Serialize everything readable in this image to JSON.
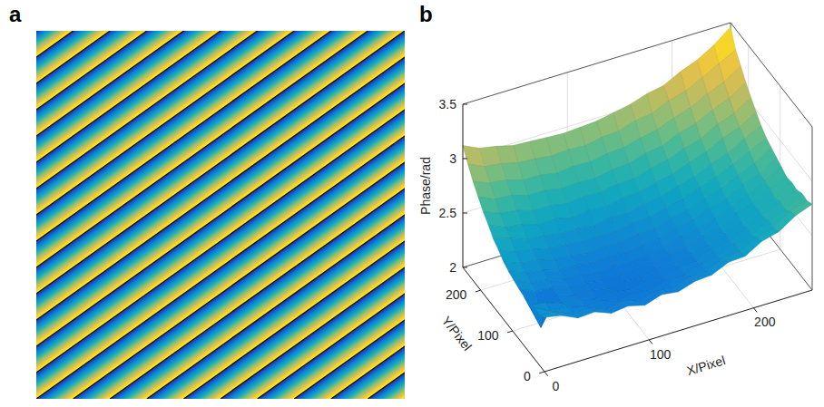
{
  "chart_data": [
    {
      "type": "wrapped_phase",
      "panel": "a",
      "color": "parula",
      "tick_labels": false,
      "xlim": [
        0,
        256
      ],
      "ylim": [
        0,
        256
      ],
      "zlim": [
        -3.14,
        3.14
      ],
      "wrap_lines": {
        "x_top": [
          0,
          25.6,
          51.2,
          76.8,
          102.4,
          128,
          153.6,
          179.2,
          204.8,
          230.4,
          256,
          281.6,
          307.2,
          332.8,
          358.4,
          384,
          409.6,
          435.2,
          460.8,
          486.4,
          512,
          537.6,
          563.2,
          588.8,
          614.4
        ],
        "x_bottom": [
          -358.4,
          -332.8,
          -307.2,
          -281.6,
          -256,
          -230.4,
          -204.8,
          -179.2,
          -153.6,
          -128,
          -102.4,
          -76.8,
          -51.2,
          -25.6,
          0,
          25.6,
          51.2,
          76.8,
          102.4,
          128,
          153.6,
          179.2,
          204.8,
          230.4,
          256
        ]
      }
    },
    {
      "type": "surface",
      "panel": "b",
      "color": "parula",
      "grid": true,
      "xlabel": "X/Pixel",
      "ylabel": "Y/Pixel",
      "zlabel": "Phase/rad",
      "xlim": [
        0,
        256
      ],
      "ylim": [
        0,
        256
      ],
      "zlim": [
        2,
        3.5
      ],
      "xticks": [
        0,
        100,
        200
      ],
      "yticks": [
        0,
        100,
        200
      ],
      "zticks": [
        2,
        2.5,
        3,
        3.5
      ],
      "x": [
        0,
        16,
        32,
        48,
        64,
        80,
        96,
        112,
        128,
        144,
        160,
        176,
        192,
        208,
        224,
        240,
        256
      ],
      "y": [
        0,
        16,
        32,
        48,
        64,
        80,
        96,
        112,
        128,
        144,
        160,
        176,
        192,
        208,
        224,
        240,
        256
      ],
      "z": [
        [
          2.5,
          2.47,
          2.4,
          2.41,
          2.35,
          2.37,
          2.33,
          2.38,
          2.36,
          2.41,
          2.42,
          2.49,
          2.5,
          2.59,
          2.63,
          2.73,
          2.79
        ],
        [
          2.46,
          2.44,
          2.37,
          2.38,
          2.32,
          2.35,
          2.31,
          2.35,
          2.33,
          2.39,
          2.39,
          2.46,
          2.48,
          2.56,
          2.6,
          2.71,
          2.76
        ],
        [
          2.47,
          2.39,
          2.38,
          2.33,
          2.34,
          2.3,
          2.32,
          2.3,
          2.34,
          2.34,
          2.4,
          2.41,
          2.49,
          2.52,
          2.61,
          2.66,
          2.77
        ],
        [
          2.43,
          2.41,
          2.35,
          2.35,
          2.3,
          2.31,
          2.29,
          2.32,
          2.31,
          2.35,
          2.36,
          2.43,
          2.45,
          2.53,
          2.58,
          2.68,
          2.74
        ],
        [
          2.45,
          2.12,
          2.37,
          2.32,
          2.32,
          2.29,
          2.31,
          2.29,
          2.33,
          2.33,
          2.38,
          2.4,
          2.47,
          2.51,
          2.59,
          2.65,
          2.75
        ],
        [
          2.46,
          2.39,
          2.38,
          2.33,
          2.33,
          2.3,
          2.31,
          2.32,
          2.32,
          2.36,
          2.37,
          2.43,
          2.46,
          2.54,
          2.59,
          2.68,
          2.74
        ],
        [
          2.48,
          2.41,
          2.39,
          2.35,
          2.34,
          2.32,
          2.33,
          2.32,
          2.35,
          2.36,
          2.41,
          2.43,
          2.49,
          2.55,
          2.6,
          2.69,
          2.77
        ],
        [
          2.5,
          2.44,
          2.42,
          2.37,
          2.37,
          2.34,
          2.36,
          2.35,
          2.37,
          2.38,
          2.43,
          2.46,
          2.52,
          2.56,
          2.64,
          2.7,
          2.8
        ],
        [
          2.53,
          2.47,
          2.45,
          2.41,
          2.4,
          2.37,
          2.39,
          2.38,
          2.41,
          2.41,
          2.46,
          2.49,
          2.55,
          2.59,
          2.67,
          2.73,
          2.83
        ],
        [
          2.58,
          2.51,
          2.49,
          2.45,
          2.44,
          2.42,
          2.43,
          2.42,
          2.45,
          2.46,
          2.5,
          2.53,
          2.59,
          2.64,
          2.71,
          2.78,
          2.86
        ],
        [
          2.62,
          2.58,
          2.52,
          2.51,
          2.48,
          2.48,
          2.46,
          2.49,
          2.48,
          2.52,
          2.54,
          2.59,
          2.63,
          2.7,
          2.75,
          2.84,
          2.91
        ],
        [
          2.69,
          2.62,
          2.6,
          2.55,
          2.56,
          2.52,
          2.54,
          2.53,
          2.56,
          2.57,
          2.61,
          2.64,
          2.7,
          2.75,
          2.83,
          2.88,
          2.98
        ],
        [
          2.75,
          2.69,
          2.67,
          2.62,
          2.62,
          2.59,
          2.61,
          2.6,
          2.63,
          2.63,
          2.68,
          2.71,
          2.77,
          2.81,
          2.9,
          2.95,
          3.05
        ],
        [
          2.83,
          2.76,
          2.75,
          2.7,
          2.7,
          2.67,
          2.68,
          2.67,
          2.7,
          2.71,
          2.76,
          2.78,
          2.85,
          2.89,
          2.97,
          3.03,
          3.13
        ],
        [
          2.91,
          2.85,
          2.83,
          2.78,
          2.78,
          2.75,
          2.77,
          2.76,
          2.79,
          2.8,
          2.84,
          2.87,
          2.93,
          2.98,
          3.06,
          3.12,
          3.22
        ],
        [
          3.01,
          2.94,
          2.92,
          2.88,
          2.87,
          2.85,
          2.86,
          2.85,
          2.88,
          2.89,
          2.94,
          2.96,
          3.03,
          3.07,
          3.15,
          3.23,
          3.31
        ],
        [
          3.12,
          3.05,
          3.02,
          2.98,
          2.97,
          2.96,
          2.95,
          2.96,
          2.97,
          3.0,
          3.03,
          3.08,
          3.11,
          3.19,
          3.25,
          3.34,
          3.46
        ]
      ]
    }
  ]
}
